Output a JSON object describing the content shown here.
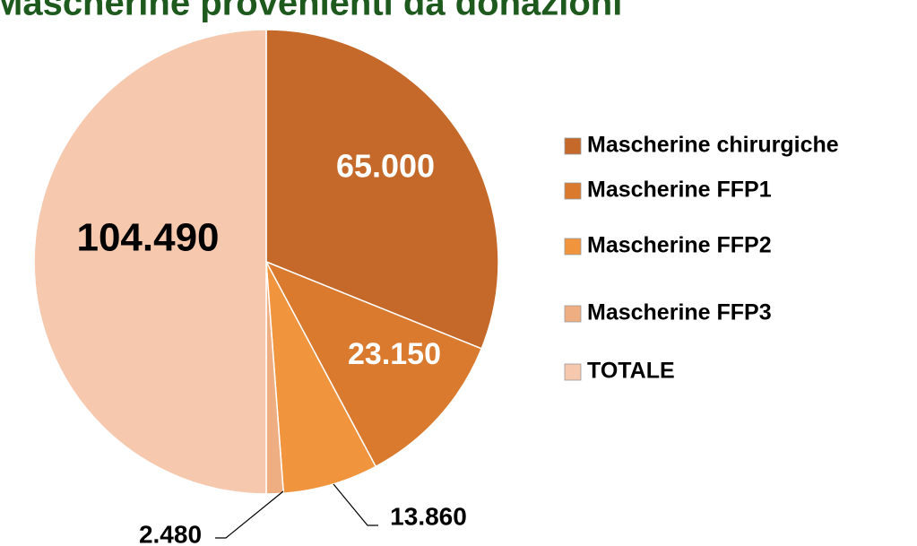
{
  "chart_data": {
    "type": "pie",
    "title": "Mascherine provenienti da donazioni",
    "categories": [
      "Mascherine chirurgiche",
      "Mascherine FFP1",
      "Mascherine FFP2",
      "Mascherine FFP3",
      "TOTALE"
    ],
    "values": [
      65000,
      23150,
      13860,
      2480,
      104490
    ],
    "value_labels": [
      "65.000",
      "23.150",
      "13.860",
      "2.480",
      "104.490"
    ],
    "colors": [
      "#c4692a",
      "#d97a2e",
      "#f0953e",
      "#eeae82",
      "#f6c8ae"
    ],
    "legend": "right"
  }
}
